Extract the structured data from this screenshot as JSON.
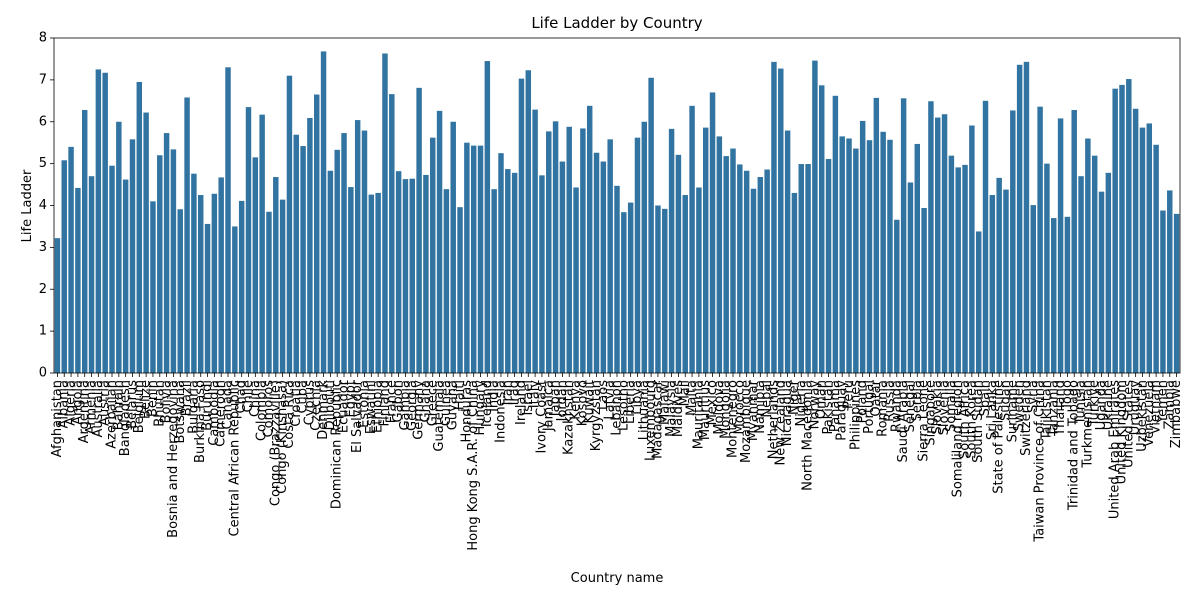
{
  "colors": {
    "bar": "#3274a1",
    "axis": "#000000",
    "background": "#ffffff"
  },
  "chart_data": {
    "type": "bar",
    "title": "Life Ladder by Country",
    "xlabel": "Country name",
    "ylabel": "Life Ladder",
    "ylim": [
      0,
      8
    ],
    "yticks": [
      0,
      1,
      2,
      3,
      4,
      5,
      6,
      7,
      8
    ],
    "grid": false,
    "legend": "none",
    "categories": [
      "Afghanistan",
      "Albania",
      "Algeria",
      "Angola",
      "Argentina",
      "Armenia",
      "Australia",
      "Austria",
      "Azerbaijan",
      "Bahrain",
      "Bangladesh",
      "Belarus",
      "Belgium",
      "Belize",
      "Benin",
      "Bhutan",
      "Bolivia",
      "Bosnia and Herzegovina",
      "Botswana",
      "Brazil",
      "Bulgaria",
      "Burkina Faso",
      "Burundi",
      "Cambodia",
      "Cameroon",
      "Canada",
      "Central African Republic",
      "Chad",
      "Chile",
      "China",
      "Colombia",
      "Comoros",
      "Congo (Brazzaville)",
      "Congo (Kinshasa)",
      "Costa Rica",
      "Croatia",
      "Cuba",
      "Cyprus",
      "Czechia",
      "Denmark",
      "Djibouti",
      "Dominican Republic",
      "Ecuador",
      "Egypt",
      "El Salvador",
      "Estonia",
      "Eswatini",
      "Ethiopia",
      "Finland",
      "France",
      "Gabon",
      "Gambia",
      "Georgia",
      "Germany",
      "Ghana",
      "Greece",
      "Guatemala",
      "Guinea",
      "Guyana",
      "Haiti",
      "Honduras",
      "Hong Kong S.A.R. of China",
      "Hungary",
      "Iceland",
      "India",
      "Indonesia",
      "Iran",
      "Iraq",
      "Ireland",
      "Israel",
      "Italy",
      "Ivory Coast",
      "Jamaica",
      "Japan",
      "Jordan",
      "Kazakhstan",
      "Kenya",
      "Kosovo",
      "Kuwait",
      "Kyrgyzstan",
      "Laos",
      "Latvia",
      "Lebanon",
      "Lesotho",
      "Liberia",
      "Libya",
      "Lithuania",
      "Luxembourg",
      "Madagascar",
      "Malawi",
      "Malaysia",
      "Maldives",
      "Mali",
      "Malta",
      "Mauritania",
      "Mauritius",
      "Mexico",
      "Moldova",
      "Mongolia",
      "Montenegro",
      "Morocco",
      "Mozambique",
      "Myanmar",
      "Namibia",
      "Nepal",
      "Netherlands",
      "New Zealand",
      "Nicaragua",
      "Niger",
      "Nigeria",
      "North Macedonia",
      "Norway",
      "Oman",
      "Pakistan",
      "Panama",
      "Paraguay",
      "Peru",
      "Philippines",
      "Poland",
      "Portugal",
      "Qatar",
      "Romania",
      "Russia",
      "Rwanda",
      "Saudi Arabia",
      "Senegal",
      "Serbia",
      "Sierra Leone",
      "Singapore",
      "Slovakia",
      "Slovenia",
      "Somalia",
      "Somaliland region",
      "South Africa",
      "South Korea",
      "South Sudan",
      "Spain",
      "Sri Lanka",
      "State of Palestine",
      "Sudan",
      "Suriname",
      "Sweden",
      "Switzerland",
      "Syria",
      "Taiwan Province of China",
      "Tajikistan",
      "Tanzania",
      "Thailand",
      "Togo",
      "Trinidad and Tobago",
      "Tunisia",
      "Turkmenistan",
      "Turkiye",
      "Uganda",
      "Ukraine",
      "United Arab Emirates",
      "United Kingdom",
      "United States",
      "Uruguay",
      "Uzbekistan",
      "Venezuela",
      "Vietnam",
      "Yemen",
      "Zambia",
      "Zimbabwe"
    ],
    "values": [
      3.22,
      5.08,
      5.4,
      4.42,
      6.28,
      4.7,
      7.25,
      7.17,
      4.95,
      6.0,
      4.62,
      5.58,
      6.95,
      6.22,
      4.1,
      5.2,
      5.73,
      5.34,
      3.91,
      6.58,
      4.76,
      4.25,
      3.56,
      4.28,
      4.67,
      7.3,
      3.5,
      4.11,
      6.35,
      5.15,
      6.17,
      3.85,
      4.68,
      4.14,
      7.1,
      5.69,
      5.42,
      6.09,
      6.65,
      7.68,
      4.83,
      5.33,
      5.73,
      4.44,
      6.04,
      5.79,
      4.26,
      4.3,
      7.63,
      6.66,
      4.82,
      4.63,
      4.64,
      6.81,
      4.73,
      5.62,
      6.26,
      4.39,
      6.0,
      3.96,
      5.5,
      5.43,
      5.43,
      7.45,
      4.39,
      5.25,
      4.87,
      4.78,
      7.03,
      7.23,
      6.29,
      4.72,
      5.77,
      6.01,
      5.05,
      5.88,
      4.43,
      5.84,
      6.38,
      5.26,
      5.05,
      5.58,
      4.47,
      3.84,
      4.07,
      5.62,
      6.0,
      7.05,
      4.0,
      3.92,
      5.83,
      5.21,
      4.25,
      6.38,
      4.43,
      5.86,
      6.7,
      5.65,
      5.18,
      5.36,
      4.98,
      4.83,
      4.4,
      4.68,
      4.86,
      7.43,
      7.27,
      5.79,
      4.3,
      4.99,
      4.99,
      7.46,
      6.87,
      5.11,
      6.62,
      5.65,
      5.6,
      5.36,
      6.02,
      5.56,
      6.57,
      5.76,
      5.57,
      3.66,
      6.56,
      4.55,
      5.47,
      3.94,
      6.49,
      6.1,
      6.18,
      5.19,
      4.91,
      4.97,
      5.91,
      3.38,
      6.5,
      4.25,
      4.66,
      4.38,
      6.27,
      7.36,
      7.43,
      4.01,
      6.36,
      5.0,
      3.7,
      6.08,
      3.73,
      6.28,
      4.7,
      5.6,
      5.19,
      4.33,
      4.78,
      6.79,
      6.88,
      7.02,
      6.31,
      5.86,
      5.96,
      5.45,
      3.88,
      4.36,
      3.8
    ]
  }
}
